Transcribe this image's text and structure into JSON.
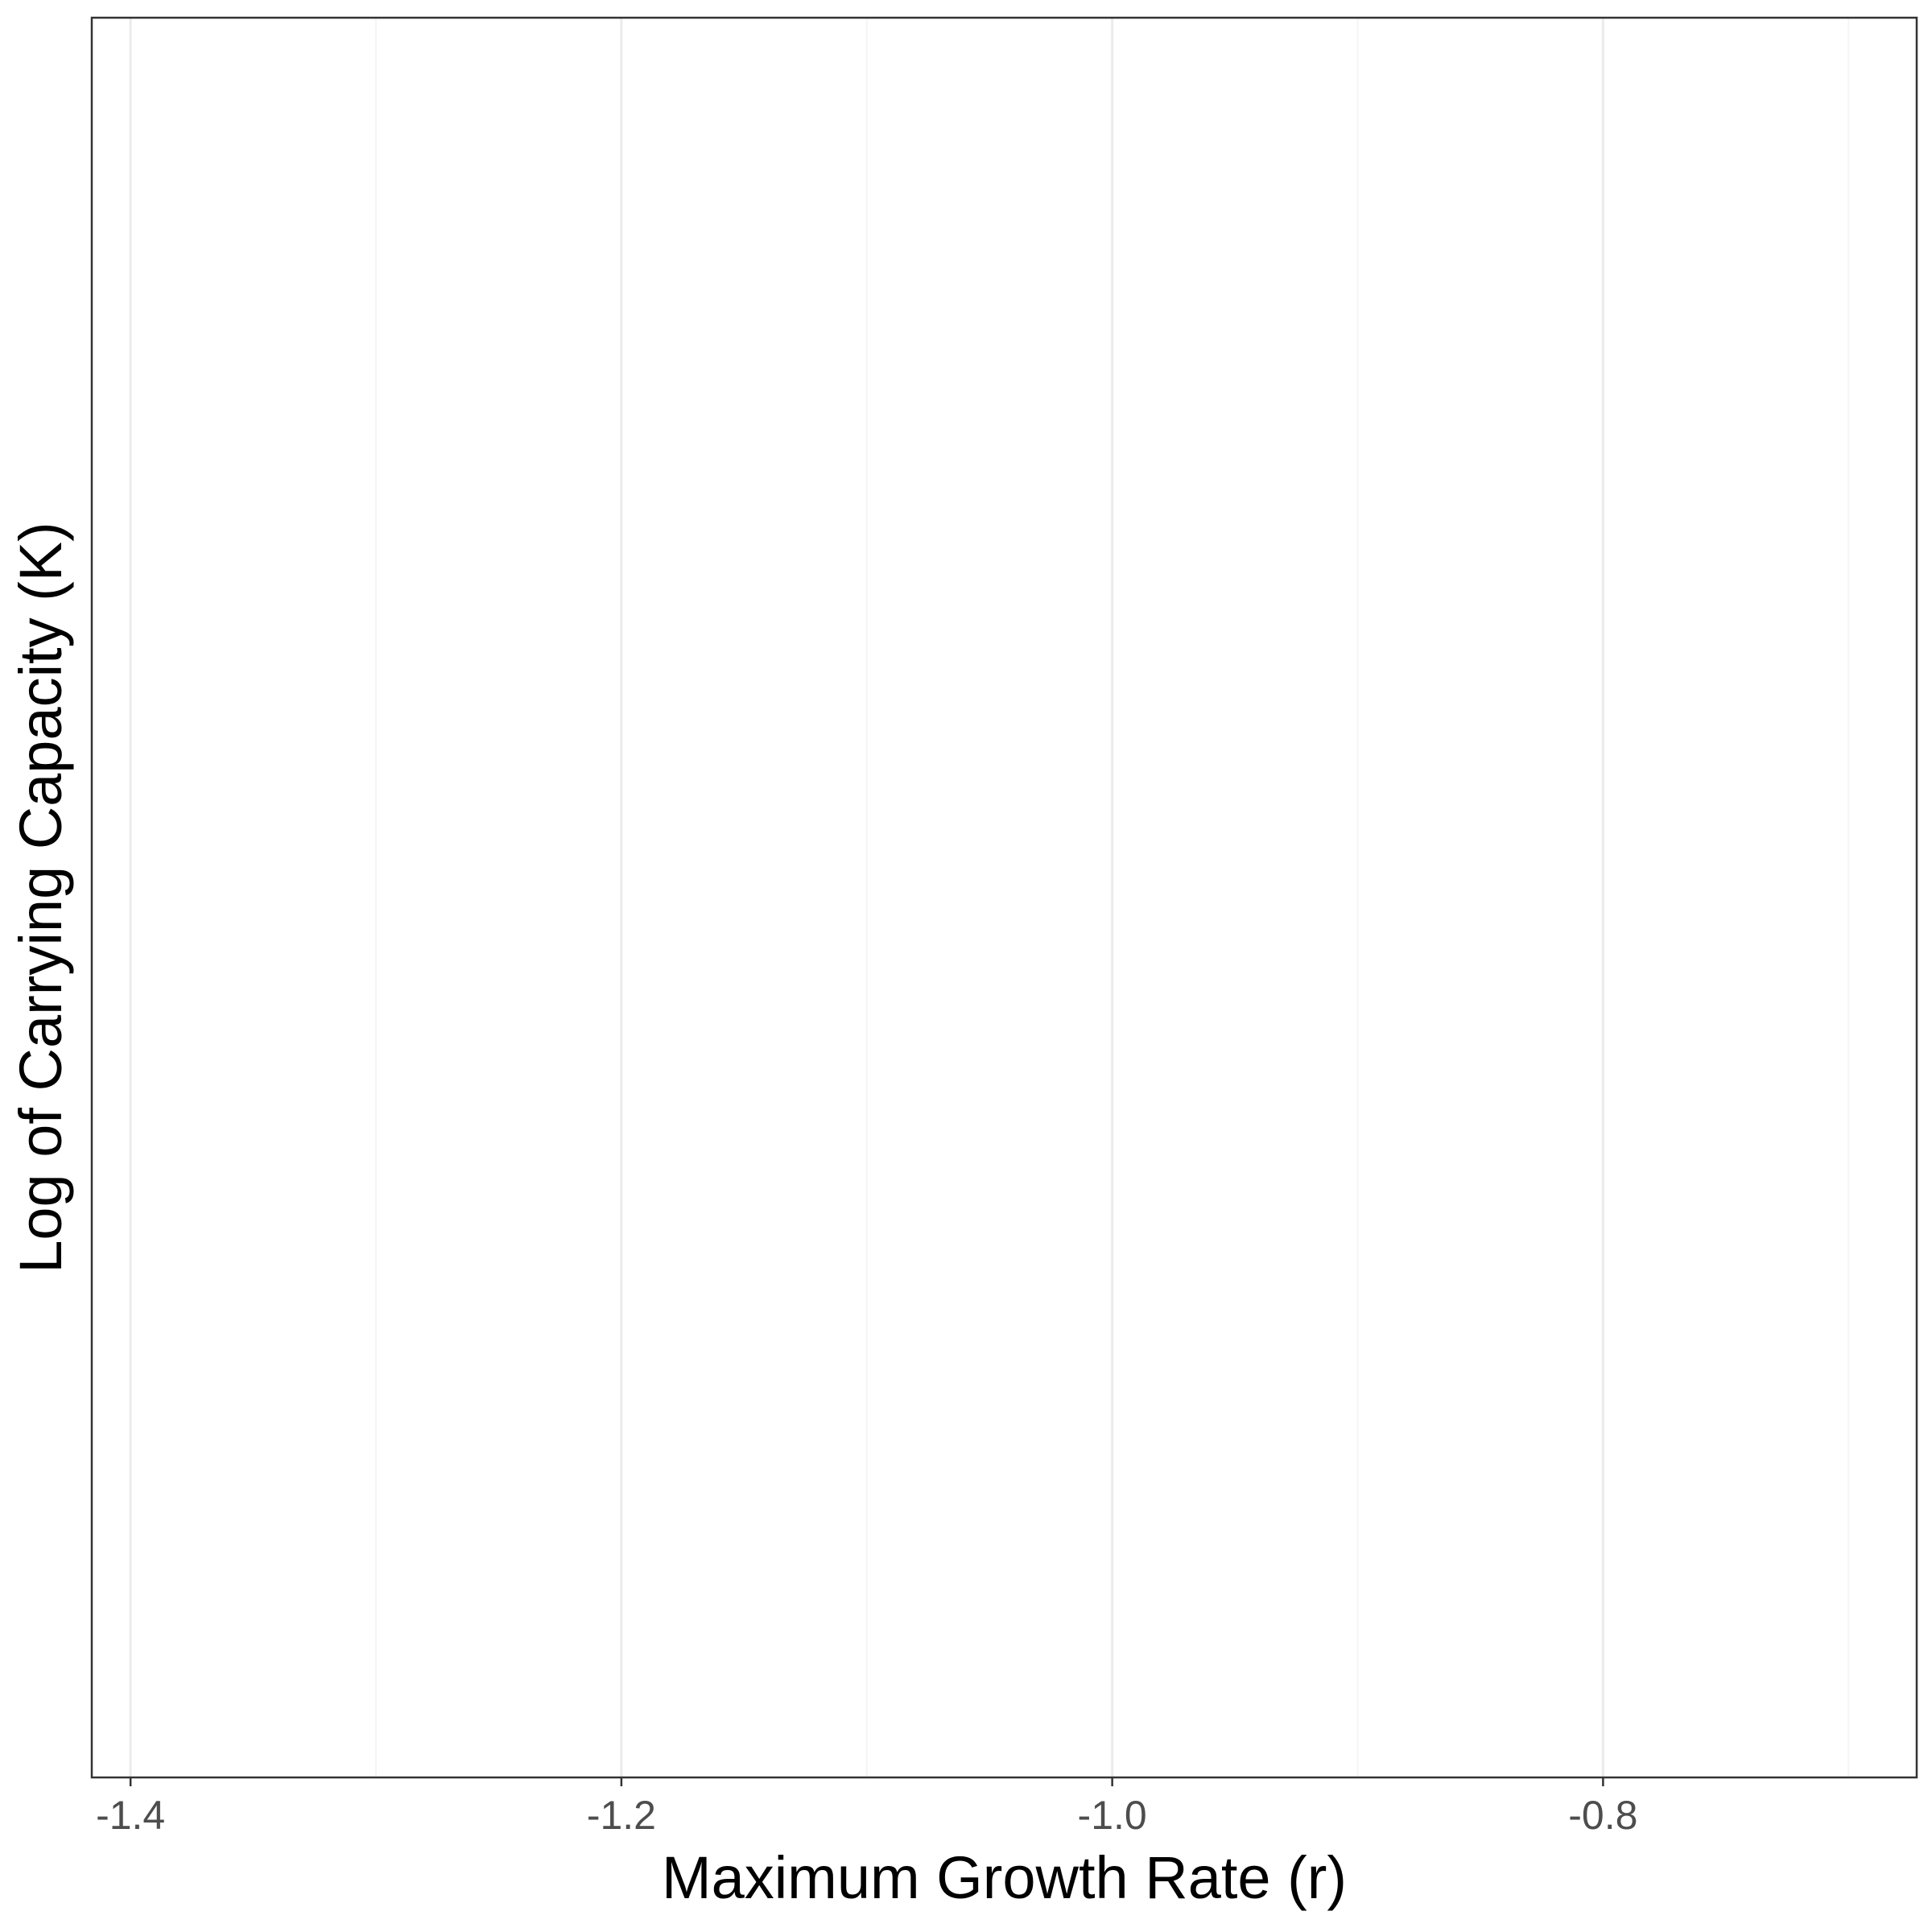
{
  "chart_data": {
    "type": "scatter",
    "title": "",
    "xlabel": "Maximum Growth Rate (r)",
    "ylabel": "Log of Carrying Capacity (K)",
    "xlim": [
      -1.4158,
      -0.6722
    ],
    "major_ticks": [
      -1.4,
      -1.2,
      -1.0,
      -0.8
    ],
    "tick_labels": [
      "-1.4",
      "-1.2",
      "-1.0",
      "-0.8"
    ],
    "minor_gridlines": [
      -1.3,
      -1.1,
      -0.9,
      -0.7
    ],
    "y_ticks": [],
    "grid": true,
    "series": [],
    "colors": {
      "panel_border": "#333333",
      "major_grid": "#ebebeb",
      "minor_grid": "#f5f5f5",
      "tick_label": "#4d4d4d",
      "axis_title": "#000000"
    }
  }
}
